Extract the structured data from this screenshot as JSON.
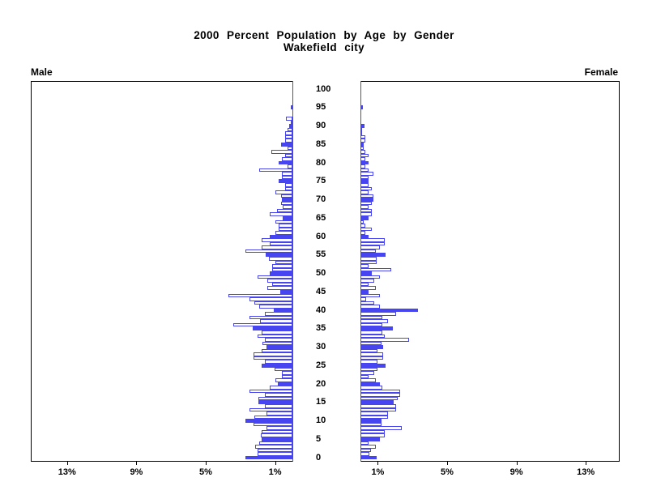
{
  "title": {
    "line1": "2000 Percent Population by Age by Gender",
    "line2": "Wakefield city"
  },
  "labels": {
    "male": "Male",
    "female": "Female"
  },
  "colors": {
    "bar_blue": "#4745ef",
    "bar_open_fill": "#ffffff",
    "axis_black": "#000000",
    "background": "#ffffff"
  },
  "axes": {
    "age_tick_labels": [
      "100",
      "95",
      "90",
      "85",
      "80",
      "75",
      "70",
      "65",
      "60",
      "55",
      "50",
      "45",
      "40",
      "35",
      "30",
      "25",
      "20",
      "15",
      "10",
      "5",
      "0"
    ],
    "left_pct_tick_labels": [
      "13%",
      "9%",
      "5%",
      "1%"
    ],
    "right_pct_tick_labels": [
      "1%",
      "5%",
      "9%",
      "13%"
    ],
    "left_pct_tick_values": [
      13,
      9,
      5,
      1
    ],
    "right_pct_tick_values": [
      1,
      5,
      9,
      13
    ]
  },
  "chart_data": {
    "type": "bar",
    "variant": "population-pyramid",
    "title": "2000 Percent Population by Age by Gender",
    "subtitle": "Wakefield city",
    "x_unit": "percent of population",
    "x_range_each_side": [
      0,
      15.1
    ],
    "x_ticks_each_side": [
      1,
      5,
      9,
      13
    ],
    "y_unit": "single year of age",
    "age_min": 0,
    "age_max": 100,
    "age_axis_labels_step": 5,
    "solid_fill_rule": "bars for ages divisible by 5 are solid blue; other ages are white with blue outline",
    "legend_position": "none",
    "grid": false,
    "series": [
      {
        "name": "Male",
        "side": "left",
        "values_by_age": [
          2.7,
          2.0,
          2.0,
          2.15,
          1.9,
          1.76,
          1.84,
          1.76,
          1.5,
          2.26,
          2.7,
          2.2,
          1.5,
          2.46,
          1.6,
          1.94,
          1.94,
          1.57,
          2.46,
          1.3,
          0.85,
          1.0,
          0.6,
          0.6,
          1.05,
          1.76,
          1.6,
          2.25,
          2.25,
          1.76,
          1.5,
          1.75,
          1.6,
          2.0,
          1.76,
          2.3,
          3.4,
          1.85,
          2.5,
          1.6,
          1.07,
          1.9,
          2.2,
          2.46,
          3.67,
          0.7,
          1.45,
          1.15,
          1.45,
          2.0,
          1.3,
          1.15,
          1.15,
          1.0,
          1.35,
          1.52,
          2.72,
          1.79,
          1.3,
          1.76,
          1.29,
          1.0,
          0.78,
          0.78,
          1.0,
          0.54,
          1.29,
          0.9,
          0.54,
          0.67,
          0.6,
          0.67,
          0.98,
          0.4,
          0.4,
          0.78,
          0.6,
          0.6,
          1.9,
          0.3,
          0.78,
          0.6,
          0.4,
          1.21,
          0.3,
          0.67,
          0.4,
          0.4,
          0.4,
          0.3,
          0.2,
          0.1,
          0.36,
          0,
          0,
          0.1,
          0,
          0,
          0,
          0,
          0
        ]
      },
      {
        "name": "Female",
        "side": "right",
        "values_by_age": [
          0.92,
          0.5,
          0.6,
          0.9,
          0.45,
          1.12,
          1.4,
          1.4,
          2.4,
          1.2,
          1.2,
          1.6,
          1.6,
          2.05,
          2.05,
          1.93,
          2.16,
          2.3,
          2.3,
          1.25,
          1.12,
          0.9,
          0.45,
          0.8,
          1.0,
          1.47,
          1.0,
          1.3,
          1.3,
          1.0,
          1.33,
          1.2,
          2.8,
          1.4,
          1.25,
          1.85,
          1.25,
          1.6,
          1.25,
          2.05,
          3.3,
          1.1,
          0.8,
          0.35,
          1.12,
          0.45,
          0.87,
          0.45,
          0.81,
          1.12,
          0.65,
          1.77,
          0.45,
          0.92,
          0.92,
          1.43,
          0.87,
          1.12,
          1.38,
          1.38,
          0.45,
          0.3,
          0.65,
          0.3,
          0.19,
          0.45,
          0.65,
          0.65,
          0.45,
          0.65,
          0.74,
          0.74,
          0.45,
          0.65,
          0.45,
          0.45,
          0.45,
          0.74,
          0.45,
          0.3,
          0.45,
          0.3,
          0.45,
          0.3,
          0.19,
          0.19,
          0.3,
          0.3,
          0.1,
          0.1,
          0.22,
          0,
          0,
          0,
          0,
          0.12,
          0,
          0,
          0,
          0,
          0
        ]
      }
    ]
  }
}
